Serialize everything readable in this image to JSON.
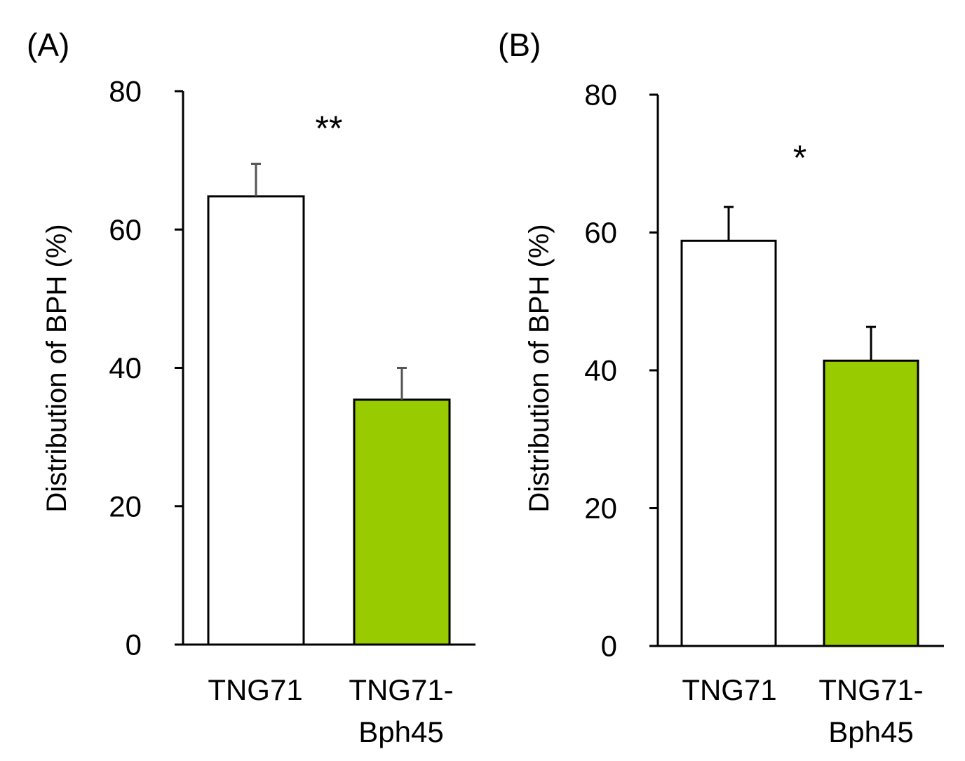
{
  "figure": {
    "background": "#ffffff"
  },
  "chart_data": [
    {
      "type": "bar",
      "panel_label": "(A)",
      "title": "",
      "xlabel": "",
      "ylabel": "Distribution of BPH (%)",
      "ylim": [
        0,
        80
      ],
      "yticks": [
        0,
        20,
        40,
        60,
        80
      ],
      "ytick_labels": [
        "0",
        "20",
        "40",
        "60",
        "80"
      ],
      "categories": [
        {
          "line1": "TNG71",
          "line2": ""
        },
        {
          "line1": "TNG71-",
          "line2": "Bph45"
        }
      ],
      "values": [
        64.8,
        35.4
      ],
      "error_plus": [
        4.7,
        4.6
      ],
      "colors": [
        "#ffffff",
        "#99cc00"
      ],
      "bar_edge_color": "#000000",
      "errorbar_color": "#555555",
      "significance": "**",
      "grid": false,
      "legend": "none"
    },
    {
      "type": "bar",
      "panel_label": "(B)",
      "title": "",
      "xlabel": "",
      "ylabel": "Distribution of BPH (%)",
      "ylim": [
        0,
        80
      ],
      "yticks": [
        0,
        20,
        40,
        60,
        80
      ],
      "ytick_labels": [
        "0",
        "20",
        "40",
        "60",
        "80"
      ],
      "categories": [
        {
          "line1": "TNG71",
          "line2": ""
        },
        {
          "line1": "TNG71-",
          "line2": "Bph45"
        }
      ],
      "values": [
        58.8,
        41.4
      ],
      "error_plus": [
        4.9,
        4.9
      ],
      "colors": [
        "#ffffff",
        "#99cc00"
      ],
      "bar_edge_color": "#000000",
      "errorbar_color": "#000000",
      "significance": "*",
      "grid": false,
      "legend": "none"
    }
  ]
}
